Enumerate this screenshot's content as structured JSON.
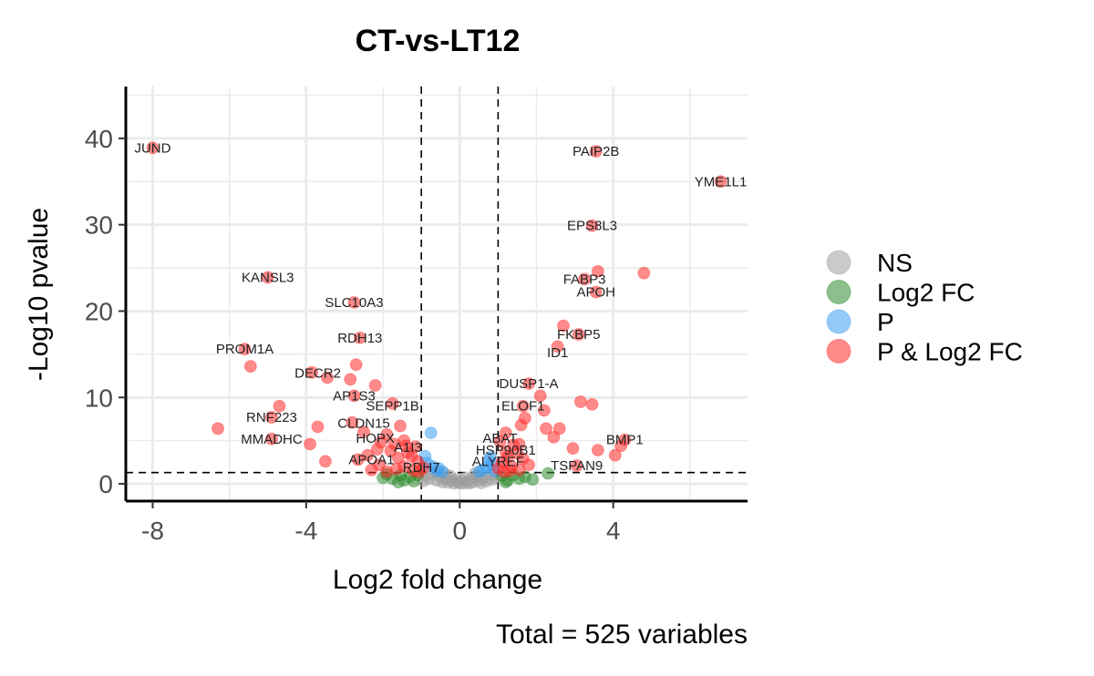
{
  "chart_data": {
    "type": "scatter",
    "title": "CT-vs-LT12",
    "xlabel": "Log2 fold change",
    "ylabel": "-Log10 pvalue",
    "caption": "Total = 525 variables",
    "xlim": [
      -8.7,
      7.5
    ],
    "ylim": [
      -2,
      46
    ],
    "xticks": [
      -8,
      -4,
      0,
      4
    ],
    "yticks": [
      0,
      10,
      20,
      30,
      40
    ],
    "x_tick_labels": [
      "-8",
      "-4",
      "0",
      "4"
    ],
    "y_tick_labels": [
      "0",
      "10",
      "20",
      "30",
      "40"
    ],
    "fc_cutoff": 1,
    "p_cutoff_log10": 1.3,
    "grid": true,
    "legend_position": "right",
    "legend": [
      {
        "key": "NS",
        "label": "NS",
        "color": "#9e9e9e"
      },
      {
        "key": "FC",
        "label": "Log2 FC",
        "color": "#2e8b2e"
      },
      {
        "key": "P",
        "label": "P",
        "color": "#3d9ef0"
      },
      {
        "key": "PFC",
        "label": "P & Log2 FC",
        "color": "#ff2a2a"
      }
    ],
    "labeled_points": [
      {
        "gene": "JUND",
        "x": -8.0,
        "y": 38.9
      },
      {
        "gene": "PAIP2B",
        "x": 3.55,
        "y": 38.5
      },
      {
        "gene": "YME1L1",
        "x": 6.8,
        "y": 35.0
      },
      {
        "gene": "EPS8L3",
        "x": 3.45,
        "y": 29.9
      },
      {
        "gene": "KANSL3",
        "x": -5.0,
        "y": 23.9
      },
      {
        "gene": "FABP3",
        "x": 3.25,
        "y": 23.7
      },
      {
        "gene": "APOH",
        "x": 3.55,
        "y": 22.2
      },
      {
        "gene": "SLC10A3",
        "x": -2.75,
        "y": 21.0
      },
      {
        "gene": "FKBP5",
        "x": 3.1,
        "y": 17.3
      },
      {
        "gene": "RDH13",
        "x": -2.6,
        "y": 16.9
      },
      {
        "gene": "PROM1A",
        "x": -5.6,
        "y": 15.6
      },
      {
        "gene": "ID1",
        "x": 2.55,
        "y": 15.2
      },
      {
        "gene": "DECR2",
        "x": -3.7,
        "y": 12.8
      },
      {
        "gene": "DUSP1-A",
        "x": 1.8,
        "y": 11.6
      },
      {
        "gene": "AP1S3",
        "x": -2.75,
        "y": 10.2
      },
      {
        "gene": "ELOF1",
        "x": 1.65,
        "y": 9.0
      },
      {
        "gene": "SEPP1B",
        "x": -1.75,
        "y": 9.0
      },
      {
        "gene": "RNF223",
        "x": -4.9,
        "y": 7.7
      },
      {
        "gene": "CLDN15",
        "x": -2.5,
        "y": 7.0
      },
      {
        "gene": "ABAT",
        "x": 1.05,
        "y": 5.3
      },
      {
        "gene": "HOPX",
        "x": -2.2,
        "y": 5.3
      },
      {
        "gene": "MMADHC",
        "x": -4.9,
        "y": 5.2
      },
      {
        "gene": "HSP90B1",
        "x": 1.2,
        "y": 3.9
      },
      {
        "gene": "BMP1",
        "x": 4.3,
        "y": 5.1
      },
      {
        "gene": "A1I3",
        "x": -1.35,
        "y": 4.2
      },
      {
        "gene": "APOA1",
        "x": -2.3,
        "y": 2.8
      },
      {
        "gene": "ALYREF",
        "x": 1.0,
        "y": 2.6
      },
      {
        "gene": "TSPAN9",
        "x": 3.05,
        "y": 2.1
      },
      {
        "gene": "RDH7",
        "x": -1.0,
        "y": 1.9
      }
    ],
    "points": [
      {
        "x": -8.0,
        "y": 38.9,
        "g": "PFC"
      },
      {
        "x": 3.55,
        "y": 38.5,
        "g": "PFC"
      },
      {
        "x": 6.8,
        "y": 35.0,
        "g": "PFC"
      },
      {
        "x": 3.45,
        "y": 29.9,
        "g": "PFC"
      },
      {
        "x": -5.0,
        "y": 23.9,
        "g": "PFC"
      },
      {
        "x": 3.25,
        "y": 23.7,
        "g": "PFC"
      },
      {
        "x": 3.6,
        "y": 24.6,
        "g": "PFC"
      },
      {
        "x": 4.8,
        "y": 24.4,
        "g": "PFC"
      },
      {
        "x": 3.55,
        "y": 22.2,
        "g": "PFC"
      },
      {
        "x": -2.75,
        "y": 21.0,
        "g": "PFC"
      },
      {
        "x": 2.7,
        "y": 18.3,
        "g": "PFC"
      },
      {
        "x": 3.1,
        "y": 17.3,
        "g": "PFC"
      },
      {
        "x": -2.6,
        "y": 16.9,
        "g": "PFC"
      },
      {
        "x": -5.6,
        "y": 15.6,
        "g": "PFC"
      },
      {
        "x": 2.55,
        "y": 15.9,
        "g": "PFC"
      },
      {
        "x": -2.7,
        "y": 13.8,
        "g": "PFC"
      },
      {
        "x": -5.45,
        "y": 13.6,
        "g": "PFC"
      },
      {
        "x": -3.45,
        "y": 12.3,
        "g": "PFC"
      },
      {
        "x": -3.85,
        "y": 12.9,
        "g": "PFC"
      },
      {
        "x": -2.85,
        "y": 12.1,
        "g": "PFC"
      },
      {
        "x": 1.8,
        "y": 11.6,
        "g": "PFC"
      },
      {
        "x": -2.2,
        "y": 11.4,
        "g": "PFC"
      },
      {
        "x": 2.1,
        "y": 10.2,
        "g": "PFC"
      },
      {
        "x": -2.75,
        "y": 10.2,
        "g": "PFC"
      },
      {
        "x": 3.15,
        "y": 9.5,
        "g": "PFC"
      },
      {
        "x": 3.45,
        "y": 9.2,
        "g": "PFC"
      },
      {
        "x": -1.75,
        "y": 9.3,
        "g": "PFC"
      },
      {
        "x": -4.7,
        "y": 9.0,
        "g": "PFC"
      },
      {
        "x": 1.65,
        "y": 9.0,
        "g": "PFC"
      },
      {
        "x": 2.2,
        "y": 8.5,
        "g": "PFC"
      },
      {
        "x": -4.9,
        "y": 7.7,
        "g": "PFC"
      },
      {
        "x": 1.7,
        "y": 7.6,
        "g": "PFC"
      },
      {
        "x": -2.8,
        "y": 7.1,
        "g": "PFC"
      },
      {
        "x": 1.6,
        "y": 6.8,
        "g": "PFC"
      },
      {
        "x": -1.55,
        "y": 6.7,
        "g": "PFC"
      },
      {
        "x": -6.3,
        "y": 6.4,
        "g": "PFC"
      },
      {
        "x": -3.7,
        "y": 6.6,
        "g": "PFC"
      },
      {
        "x": 2.25,
        "y": 6.4,
        "g": "PFC"
      },
      {
        "x": 2.6,
        "y": 6.4,
        "g": "PFC"
      },
      {
        "x": -2.5,
        "y": 6.0,
        "g": "PFC"
      },
      {
        "x": 1.2,
        "y": 5.9,
        "g": "PFC"
      },
      {
        "x": -1.9,
        "y": 5.7,
        "g": "PFC"
      },
      {
        "x": 2.45,
        "y": 5.4,
        "g": "PFC"
      },
      {
        "x": -4.9,
        "y": 5.2,
        "g": "PFC"
      },
      {
        "x": 4.3,
        "y": 5.1,
        "g": "PFC"
      },
      {
        "x": -1.45,
        "y": 5.0,
        "g": "PFC"
      },
      {
        "x": -2.05,
        "y": 4.8,
        "g": "PFC"
      },
      {
        "x": 1.05,
        "y": 4.9,
        "g": "PFC"
      },
      {
        "x": -3.9,
        "y": 4.6,
        "g": "PFC"
      },
      {
        "x": 1.4,
        "y": 4.5,
        "g": "PFC"
      },
      {
        "x": -1.15,
        "y": 4.3,
        "g": "PFC"
      },
      {
        "x": 4.2,
        "y": 4.4,
        "g": "PFC"
      },
      {
        "x": 2.95,
        "y": 4.1,
        "g": "PFC"
      },
      {
        "x": -2.15,
        "y": 4.0,
        "g": "PFC"
      },
      {
        "x": -1.8,
        "y": 3.8,
        "g": "PFC"
      },
      {
        "x": 1.2,
        "y": 3.7,
        "g": "PFC"
      },
      {
        "x": 3.6,
        "y": 3.9,
        "g": "PFC"
      },
      {
        "x": -1.35,
        "y": 3.6,
        "g": "PFC"
      },
      {
        "x": 1.5,
        "y": 3.5,
        "g": "PFC"
      },
      {
        "x": 4.05,
        "y": 3.3,
        "g": "PFC"
      },
      {
        "x": -2.4,
        "y": 3.3,
        "g": "PFC"
      },
      {
        "x": -1.25,
        "y": 3.2,
        "g": "PFC"
      },
      {
        "x": 1.25,
        "y": 3.1,
        "g": "PFC"
      },
      {
        "x": -1.6,
        "y": 3.0,
        "g": "PFC"
      },
      {
        "x": -3.5,
        "y": 2.6,
        "g": "PFC"
      },
      {
        "x": -2.65,
        "y": 2.8,
        "g": "PFC"
      },
      {
        "x": 1.65,
        "y": 2.9,
        "g": "PFC"
      },
      {
        "x": -1.1,
        "y": 2.6,
        "g": "PFC"
      },
      {
        "x": 1.1,
        "y": 2.5,
        "g": "PFC"
      },
      {
        "x": 3.05,
        "y": 2.1,
        "g": "PFC"
      },
      {
        "x": -2.1,
        "y": 2.2,
        "g": "PFC"
      },
      {
        "x": -2.3,
        "y": 1.6,
        "g": "PFC"
      },
      {
        "x": 1.35,
        "y": 2.0,
        "g": "PFC"
      },
      {
        "x": -1.45,
        "y": 2.0,
        "g": "PFC"
      },
      {
        "x": 1.8,
        "y": 2.2,
        "g": "PFC"
      },
      {
        "x": -0.95,
        "y": 1.9,
        "g": "PFC"
      },
      {
        "x": 1.0,
        "y": 1.8,
        "g": "PFC"
      },
      {
        "x": -1.65,
        "y": 1.7,
        "g": "PFC"
      },
      {
        "x": 1.55,
        "y": 1.6,
        "g": "PFC"
      },
      {
        "x": -1.2,
        "y": 1.5,
        "g": "PFC"
      },
      {
        "x": 1.3,
        "y": 1.5,
        "g": "PFC"
      },
      {
        "x": -1.9,
        "y": 1.4,
        "g": "PFC"
      },
      {
        "x": -1.05,
        "y": 1.4,
        "g": "PFC"
      },
      {
        "x": 1.15,
        "y": 1.4,
        "g": "PFC"
      },
      {
        "x": -1.4,
        "y": 4.4,
        "g": "PFC"
      },
      {
        "x": -1.7,
        "y": 4.6,
        "g": "PFC"
      },
      {
        "x": 1.55,
        "y": 4.6,
        "g": "PFC"
      },
      {
        "x": -0.75,
        "y": 5.9,
        "g": "P"
      },
      {
        "x": -0.9,
        "y": 3.2,
        "g": "P"
      },
      {
        "x": -0.85,
        "y": 2.4,
        "g": "P"
      },
      {
        "x": -0.7,
        "y": 2.0,
        "g": "P"
      },
      {
        "x": -0.55,
        "y": 1.8,
        "g": "P"
      },
      {
        "x": -0.6,
        "y": 1.5,
        "g": "P"
      },
      {
        "x": -0.45,
        "y": 1.4,
        "g": "P"
      },
      {
        "x": 0.8,
        "y": 3.1,
        "g": "P"
      },
      {
        "x": 0.75,
        "y": 2.7,
        "g": "P"
      },
      {
        "x": 0.85,
        "y": 2.2,
        "g": "P"
      },
      {
        "x": 0.7,
        "y": 1.9,
        "g": "P"
      },
      {
        "x": 0.6,
        "y": 1.6,
        "g": "P"
      },
      {
        "x": 0.5,
        "y": 1.4,
        "g": "P"
      },
      {
        "x": 0.9,
        "y": 1.5,
        "g": "P"
      },
      {
        "x": -1.9,
        "y": 1.1,
        "g": "FC"
      },
      {
        "x": -1.75,
        "y": 0.6,
        "g": "FC"
      },
      {
        "x": -1.55,
        "y": 1.0,
        "g": "FC"
      },
      {
        "x": -1.45,
        "y": 0.4,
        "g": "FC"
      },
      {
        "x": -1.3,
        "y": 0.8,
        "g": "FC"
      },
      {
        "x": -1.2,
        "y": 0.3,
        "g": "FC"
      },
      {
        "x": -1.1,
        "y": 1.0,
        "g": "FC"
      },
      {
        "x": -1.6,
        "y": 0.2,
        "g": "FC"
      },
      {
        "x": -2.0,
        "y": 0.7,
        "g": "FC"
      },
      {
        "x": 1.1,
        "y": 0.9,
        "g": "FC"
      },
      {
        "x": 1.25,
        "y": 0.4,
        "g": "FC"
      },
      {
        "x": 1.4,
        "y": 1.0,
        "g": "FC"
      },
      {
        "x": 1.55,
        "y": 0.6,
        "g": "FC"
      },
      {
        "x": 1.7,
        "y": 0.8,
        "g": "FC"
      },
      {
        "x": 1.2,
        "y": 0.2,
        "g": "FC"
      },
      {
        "x": 2.3,
        "y": 1.2,
        "g": "FC"
      },
      {
        "x": 1.9,
        "y": 0.5,
        "g": "FC"
      },
      {
        "x": -0.9,
        "y": 0.9,
        "g": "NS"
      },
      {
        "x": -0.8,
        "y": 0.6,
        "g": "NS"
      },
      {
        "x": -0.7,
        "y": 1.1,
        "g": "NS"
      },
      {
        "x": -0.6,
        "y": 0.4,
        "g": "NS"
      },
      {
        "x": -0.5,
        "y": 0.8,
        "g": "NS"
      },
      {
        "x": -0.45,
        "y": 0.2,
        "g": "NS"
      },
      {
        "x": -0.35,
        "y": 0.6,
        "g": "NS"
      },
      {
        "x": -0.3,
        "y": 0.15,
        "g": "NS"
      },
      {
        "x": -0.25,
        "y": 0.9,
        "g": "NS"
      },
      {
        "x": -0.2,
        "y": 0.35,
        "g": "NS"
      },
      {
        "x": -0.15,
        "y": 0.05,
        "g": "NS"
      },
      {
        "x": -0.1,
        "y": 0.5,
        "g": "NS"
      },
      {
        "x": -0.05,
        "y": 0.2,
        "g": "NS"
      },
      {
        "x": 0.0,
        "y": 0.1,
        "g": "NS"
      },
      {
        "x": 0.05,
        "y": 0.4,
        "g": "NS"
      },
      {
        "x": 0.1,
        "y": 0.05,
        "g": "NS"
      },
      {
        "x": 0.15,
        "y": 0.7,
        "g": "NS"
      },
      {
        "x": 0.2,
        "y": 0.25,
        "g": "NS"
      },
      {
        "x": 0.25,
        "y": 0.05,
        "g": "NS"
      },
      {
        "x": 0.3,
        "y": 0.55,
        "g": "NS"
      },
      {
        "x": 0.35,
        "y": 0.2,
        "g": "NS"
      },
      {
        "x": 0.45,
        "y": 0.9,
        "g": "NS"
      },
      {
        "x": 0.5,
        "y": 0.4,
        "g": "NS"
      },
      {
        "x": 0.55,
        "y": 0.1,
        "g": "NS"
      },
      {
        "x": 0.6,
        "y": 0.7,
        "g": "NS"
      },
      {
        "x": 0.7,
        "y": 0.3,
        "g": "NS"
      },
      {
        "x": 0.8,
        "y": 1.0,
        "g": "NS"
      },
      {
        "x": 0.85,
        "y": 0.5,
        "g": "NS"
      },
      {
        "x": 0.95,
        "y": 0.8,
        "g": "NS"
      },
      {
        "x": -0.95,
        "y": 0.3,
        "g": "NS"
      },
      {
        "x": -0.4,
        "y": 1.2,
        "g": "NS"
      },
      {
        "x": 0.4,
        "y": 1.2,
        "g": "NS"
      }
    ]
  }
}
